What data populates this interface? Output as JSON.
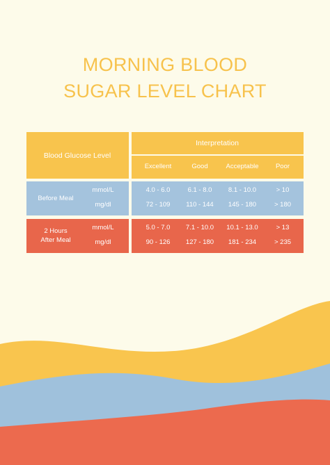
{
  "title": {
    "lines": [
      "MORNING BLOOD",
      "SUGAR LEVEL CHART"
    ]
  },
  "table": {
    "header": "Blood Glucose Level",
    "interpretation": "Interpretation",
    "columns": [
      "Excellent",
      "Good",
      "Acceptable",
      "Poor"
    ],
    "groups": [
      {
        "label": [
          "Before Meal"
        ],
        "rows": [
          {
            "unit": "mmol/L",
            "values": [
              "4.0 - 6.0",
              "6.1 - 8.0",
              "8.1 - 10.0",
              "> 10"
            ]
          },
          {
            "unit": "mg/dl",
            "values": [
              "72 - 109",
              "110 - 144",
              "145 - 180",
              "> 180"
            ]
          }
        ]
      },
      {
        "label": [
          "2 Hours",
          "After Meal"
        ],
        "rows": [
          {
            "unit": "mmol/L",
            "values": [
              "5.0 - 7.0",
              "7.1 - 10.0",
              "10.1 - 13.0",
              "> 13"
            ]
          },
          {
            "unit": "mg/dl",
            "values": [
              "90 - 126",
              "127 - 180",
              "181 - 234",
              "> 235"
            ]
          }
        ]
      }
    ]
  }
}
